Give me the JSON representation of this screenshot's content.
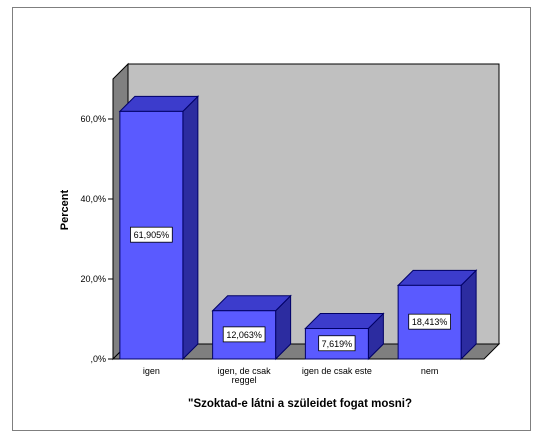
{
  "chart_data": {
    "type": "bar",
    "style": "3d",
    "title": "",
    "xlabel": "\"Szoktad-e látni a szüleidet fogat mosni?",
    "ylabel": "Percent",
    "categories": [
      "igen",
      "igen, de csak reggel",
      "igen de csak este",
      "nem"
    ],
    "tick_labels": [
      [
        "igen"
      ],
      [
        "igen, de csak",
        "reggel"
      ],
      [
        "igen de csak este"
      ],
      [
        "nem"
      ]
    ],
    "values": [
      61.905,
      12.063,
      7.619,
      18.413
    ],
    "data_labels": [
      "61,905%",
      "12,063%",
      "7,619%",
      "18,413%"
    ],
    "ylim": [
      0,
      70
    ],
    "yticks": [
      0,
      20,
      40,
      60
    ],
    "ytick_labels": [
      ",0%",
      "20,0%",
      "40,0%",
      "60,0%"
    ],
    "grid": false,
    "legend": "none",
    "colors": {
      "bar_front": "#5a5aff",
      "bar_top": "#3c3ccc",
      "bar_side": "#2c2ca0",
      "bar_outline": "#000066",
      "wall": "#c0c0c0",
      "floor": "#7f7f7f",
      "frame": "#7f7f7f"
    }
  }
}
